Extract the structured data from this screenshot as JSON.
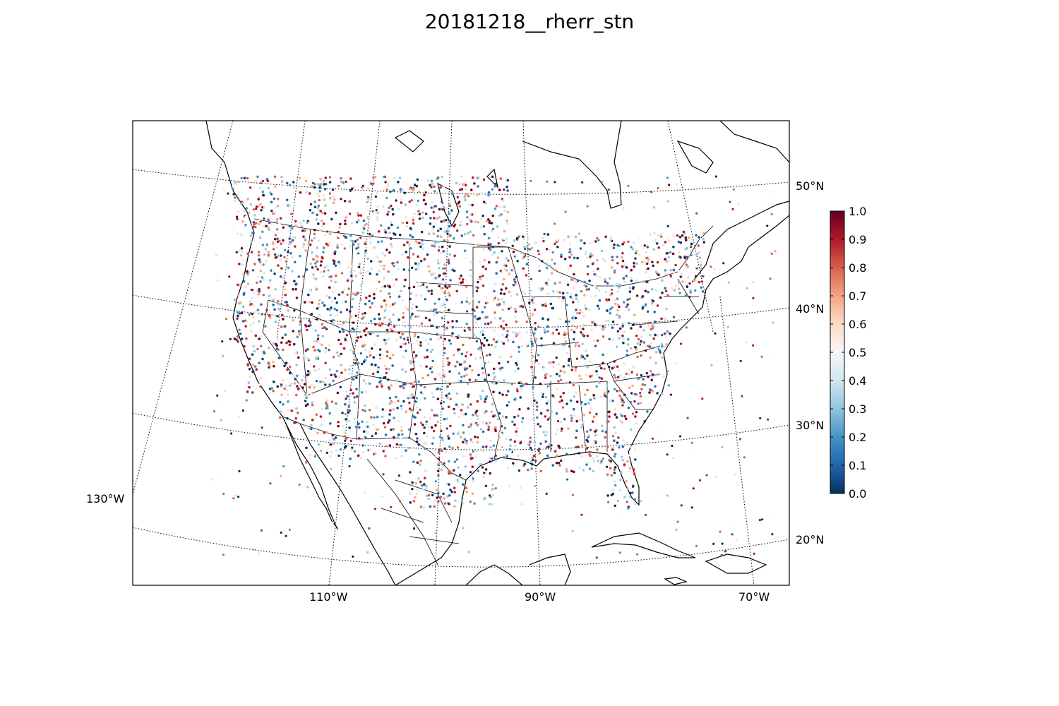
{
  "figure": {
    "title": "20181218__rherr_stn"
  },
  "chart_data": {
    "type": "scatter",
    "title": "20181218__rherr_stn",
    "map_extent": {
      "lon": [
        -130,
        -65
      ],
      "lat": [
        17,
        55
      ]
    },
    "grid": true,
    "longitude_labels": [
      {
        "lon": -130,
        "label": "130°W"
      },
      {
        "lon": -110,
        "label": "110°W"
      },
      {
        "lon": -90,
        "label": "90°W"
      },
      {
        "lon": -70,
        "label": "70°W"
      }
    ],
    "latitude_labels": [
      {
        "lat": 50,
        "label": "50°N"
      },
      {
        "lat": 40,
        "label": "40°N"
      },
      {
        "lat": 30,
        "label": "30°N"
      },
      {
        "lat": 20,
        "label": "20°N"
      }
    ],
    "colorbar": {
      "cmap": "RdBu_r",
      "vmin": 0.0,
      "vmax": 1.0,
      "ticks": [
        "0.0",
        "0.1",
        "0.2",
        "0.3",
        "0.4",
        "0.5",
        "0.6",
        "0.7",
        "0.8",
        "0.9",
        "1.0"
      ],
      "placement": "right",
      "colors": [
        "#053061",
        "#2166ac",
        "#4393c3",
        "#92c5de",
        "#d1e5f0",
        "#f7f7f7",
        "#fddbc7",
        "#f4a582",
        "#d6604d",
        "#b2182b",
        "#67001f"
      ]
    },
    "stations_note": ""
  }
}
